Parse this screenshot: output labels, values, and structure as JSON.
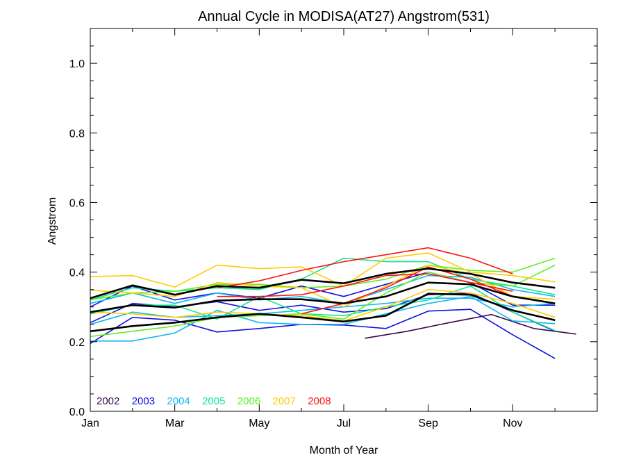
{
  "chart_data": {
    "type": "line",
    "title": "Annual Cycle in MODISA(AT27) Angstrom(531)",
    "xlabel": "Month of Year",
    "ylabel": "Angstrom",
    "x_tick_labels": [
      "Jan",
      "Mar",
      "May",
      "Jul",
      "Sep",
      "Nov"
    ],
    "x_tick_positions": [
      1,
      3,
      5,
      7,
      9,
      11
    ],
    "xlim": [
      1,
      13
    ],
    "ylim": [
      0,
      1.1
    ],
    "y_ticks": [
      "0.0",
      "0.2",
      "0.4",
      "0.6",
      "0.8",
      "1.0"
    ],
    "y_tick_values": [
      0,
      0.2,
      0.4,
      0.6,
      0.8,
      1.0
    ],
    "grid": false,
    "legend_position": "bottom-left",
    "legend": [
      {
        "label": "2002",
        "color": "#3a0a4a"
      },
      {
        "label": "2003",
        "color": "#1010e0"
      },
      {
        "label": "2004",
        "color": "#10b8f0"
      },
      {
        "label": "2005",
        "color": "#10e890"
      },
      {
        "label": "2006",
        "color": "#60f020"
      },
      {
        "label": "2007",
        "color": "#ffcc00"
      },
      {
        "label": "2008",
        "color": "#ff1010"
      }
    ],
    "series": [
      {
        "color": "#3a0a4a",
        "x": [
          7.5,
          8.5,
          9.5,
          10.5,
          11.5,
          12.5
        ],
        "y": [
          0.21,
          0.23,
          0.255,
          0.278,
          0.238,
          0.222
        ]
      },
      {
        "color": "#1010e0",
        "x": [
          1,
          2,
          3,
          4,
          5,
          6,
          7,
          8,
          9,
          10,
          11,
          12
        ],
        "y": [
          0.195,
          0.27,
          0.262,
          0.228,
          0.238,
          0.25,
          0.248,
          0.238,
          0.288,
          0.293,
          0.22,
          0.152
        ]
      },
      {
        "color": "#1010e0",
        "x": [
          1,
          2,
          3,
          4,
          5,
          6,
          7,
          8,
          9,
          10,
          11,
          12
        ],
        "y": [
          0.3,
          0.36,
          0.32,
          0.34,
          0.325,
          0.36,
          0.33,
          0.365,
          0.4,
          0.37,
          0.305,
          0.305
        ]
      },
      {
        "color": "#1010e0",
        "x": [
          1,
          2,
          3,
          4,
          5,
          6,
          7,
          8,
          9,
          10,
          11,
          12
        ],
        "y": [
          0.255,
          0.31,
          0.3,
          0.315,
          0.29,
          0.305,
          0.285,
          0.295,
          0.335,
          0.34,
          0.285,
          0.23
        ]
      },
      {
        "color": "#10b8f0",
        "x": [
          1,
          2,
          3,
          4,
          5,
          6,
          7,
          8,
          9,
          10,
          11,
          12
        ],
        "y": [
          0.202,
          0.202,
          0.225,
          0.29,
          0.255,
          0.25,
          0.25,
          0.28,
          0.31,
          0.33,
          0.26,
          0.252
        ]
      },
      {
        "color": "#10b8f0",
        "x": [
          1,
          2,
          3,
          4,
          5,
          6,
          7,
          8,
          9,
          10,
          11,
          12
        ],
        "y": [
          0.25,
          0.285,
          0.27,
          0.275,
          0.28,
          0.29,
          0.3,
          0.31,
          0.325,
          0.325,
          0.3,
          0.31
        ]
      },
      {
        "color": "#10b8f0",
        "x": [
          1,
          2,
          3,
          4,
          5,
          6,
          7,
          8,
          9,
          10,
          11,
          12
        ],
        "y": [
          0.31,
          0.34,
          0.31,
          0.34,
          0.32,
          0.33,
          0.31,
          0.35,
          0.39,
          0.385,
          0.35,
          0.33
        ]
      },
      {
        "color": "#10e890",
        "x": [
          1,
          2,
          3,
          4,
          5,
          6,
          7,
          8,
          9,
          10,
          11,
          12
        ],
        "y": [
          0.32,
          0.355,
          0.345,
          0.355,
          0.35,
          0.38,
          0.44,
          0.43,
          0.43,
          0.38,
          0.36,
          0.335
        ]
      },
      {
        "color": "#10e890",
        "x": [
          1,
          2,
          3,
          4,
          5,
          6,
          7,
          8,
          9,
          10,
          11,
          12
        ],
        "y": [
          0.28,
          0.305,
          0.305,
          0.265,
          0.33,
          0.28,
          0.275,
          0.3,
          0.32,
          0.36,
          0.285,
          0.232
        ]
      },
      {
        "color": "#60f020",
        "x": [
          1,
          2,
          3,
          4,
          5,
          6,
          7,
          8,
          9,
          10,
          11,
          12
        ],
        "y": [
          0.215,
          0.23,
          0.245,
          0.27,
          0.275,
          0.28,
          0.265,
          0.34,
          0.4,
          0.37,
          0.36,
          0.42
        ]
      },
      {
        "color": "#60f020",
        "x": [
          1,
          2,
          3,
          4,
          5,
          6,
          7,
          8,
          9,
          10,
          11,
          12
        ],
        "y": [
          0.32,
          0.34,
          0.345,
          0.365,
          0.365,
          0.355,
          0.36,
          0.38,
          0.42,
          0.405,
          0.4,
          0.44
        ]
      },
      {
        "color": "#ffcc00",
        "x": [
          1,
          2,
          3,
          4,
          5,
          6,
          7,
          8,
          9,
          10,
          11,
          12
        ],
        "y": [
          0.387,
          0.39,
          0.357,
          0.42,
          0.41,
          0.415,
          0.36,
          0.44,
          0.455,
          0.4,
          0.39,
          0.372
        ]
      },
      {
        "color": "#ffcc00",
        "x": [
          1,
          2,
          3,
          4,
          5,
          6,
          7,
          8,
          9,
          10,
          11,
          12
        ],
        "y": [
          0.348,
          0.34,
          0.33,
          0.37,
          0.36,
          0.355,
          0.3,
          0.36,
          0.42,
          0.395,
          0.33,
          0.322
        ]
      },
      {
        "color": "#ffcc00",
        "x": [
          1,
          2,
          3,
          4,
          5,
          6,
          7,
          8,
          9,
          10,
          11,
          12
        ],
        "y": [
          0.285,
          0.28,
          0.27,
          0.285,
          0.28,
          0.275,
          0.26,
          0.3,
          0.35,
          0.34,
          0.31,
          0.27
        ]
      },
      {
        "color": "#ff1010",
        "x": [
          4,
          5,
          6,
          7,
          8,
          9,
          10,
          11
        ],
        "y": [
          0.355,
          0.375,
          0.405,
          0.43,
          0.45,
          0.47,
          0.44,
          0.395
        ]
      },
      {
        "color": "#ff1010",
        "x": [
          4,
          5,
          6,
          7,
          8,
          9,
          10,
          11
        ],
        "y": [
          0.33,
          0.33,
          0.335,
          0.36,
          0.39,
          0.395,
          0.37,
          0.345
        ]
      },
      {
        "color": "#ff1010",
        "x": [
          6,
          7,
          8,
          9,
          10,
          11
        ],
        "y": [
          0.28,
          0.31,
          0.355,
          0.415,
          0.38,
          0.33
        ]
      },
      {
        "color": "#000000",
        "x": [
          1,
          2,
          3,
          4,
          5,
          6,
          7,
          8,
          9,
          10,
          11,
          12
        ],
        "y": [
          0.325,
          0.362,
          0.335,
          0.36,
          0.355,
          0.378,
          0.368,
          0.395,
          0.41,
          0.395,
          0.37,
          0.355
        ]
      },
      {
        "color": "#000000",
        "x": [
          1,
          2,
          3,
          4,
          5,
          6,
          7,
          8,
          9,
          10,
          11,
          12
        ],
        "y": [
          0.285,
          0.305,
          0.298,
          0.318,
          0.322,
          0.322,
          0.31,
          0.33,
          0.37,
          0.365,
          0.33,
          0.31
        ]
      },
      {
        "color": "#000000",
        "x": [
          1,
          2,
          3,
          4,
          5,
          6,
          7,
          8,
          9,
          10,
          11,
          12
        ],
        "y": [
          0.23,
          0.245,
          0.255,
          0.27,
          0.28,
          0.27,
          0.258,
          0.275,
          0.338,
          0.335,
          0.29,
          0.262
        ]
      }
    ]
  }
}
